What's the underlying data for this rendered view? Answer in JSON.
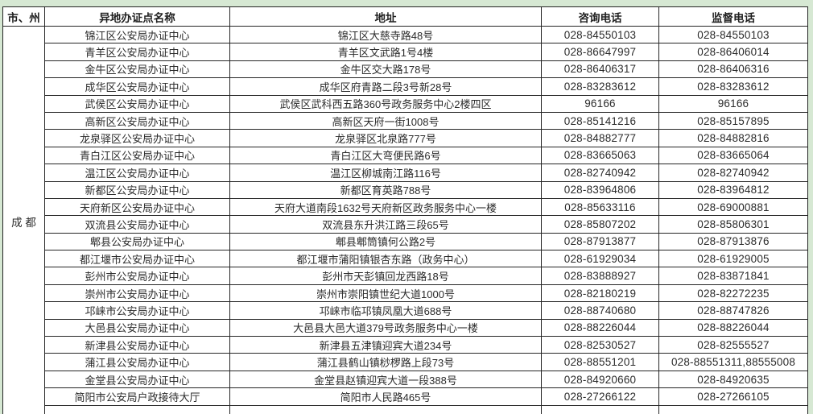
{
  "colors": {
    "page_bg": "#d6e8d3",
    "table_bg": "#ffffff",
    "border": "#262626",
    "text": "#2b2b2b"
  },
  "table": {
    "columns": [
      "市、州",
      "异地办证点名称",
      "地址",
      "咨询电话",
      "监督电话"
    ],
    "region_label": "成 都",
    "rows": [
      {
        "name": "锦江区公安局办证中心",
        "address": "锦江区大慈寺路48号",
        "consult_phone": "028-84550103",
        "supervise_phone": "028-84550103"
      },
      {
        "name": "青羊区公安局办证中心",
        "address": "青羊区文武路1号4楼",
        "consult_phone": "028-86647997",
        "supervise_phone": "028-86406014"
      },
      {
        "name": "金牛区公安局办证中心",
        "address": "金牛区交大路178号",
        "consult_phone": "028-86406317",
        "supervise_phone": "028-86406316"
      },
      {
        "name": "成华区公安局办证中心",
        "address": "成华区府青路二段3号新28号",
        "consult_phone": "028-83283612",
        "supervise_phone": "028-83283612"
      },
      {
        "name": "武侯区公安局办证中心",
        "address": "武侯区武科西五路360号政务服务中心2楼四区",
        "consult_phone": "96166",
        "supervise_phone": "96166"
      },
      {
        "name": "高新区公安局办证中心",
        "address": "高新区天府一街1008号",
        "consult_phone": "028-85141216",
        "supervise_phone": "028-85157895"
      },
      {
        "name": "龙泉驿区公安局办证中心",
        "address": "龙泉驿区北泉路777号",
        "consult_phone": "028-84882777",
        "supervise_phone": "028-84882816"
      },
      {
        "name": "青白江区公安局办证中心",
        "address": "青白江区大弯便民路6号",
        "consult_phone": "028-83665063",
        "supervise_phone": "028-83665064"
      },
      {
        "name": "温江区公安局办证中心",
        "address": "温江区柳城南江路116号",
        "consult_phone": "028-82740942",
        "supervise_phone": "028-82740942"
      },
      {
        "name": "新都区公安局办证中心",
        "address": "新都区育英路788号",
        "consult_phone": "028-83964806",
        "supervise_phone": "028-83964812"
      },
      {
        "name": "天府新区公安局办证中心",
        "address": "天府大道南段1632号天府新区政务服务中心一楼",
        "consult_phone": "028-85633116",
        "supervise_phone": "028-69000881"
      },
      {
        "name": "双流县公安局办证中心",
        "address": "双流县东升洪江路三段65号",
        "consult_phone": "028-85807202",
        "supervise_phone": "028-85806301"
      },
      {
        "name": "郫县公安局办证中心",
        "address": "郫县郫筒镇何公路2号",
        "consult_phone": "028-87913877",
        "supervise_phone": "028-87913876"
      },
      {
        "name": "都江堰市公安局办证中心",
        "address": "都江堰市蒲阳镇银杏东路（政务中心）",
        "consult_phone": "028-61929034",
        "supervise_phone": "028-61929005"
      },
      {
        "name": "彭州市公安局办证中心",
        "address": "彭州市天彭镇回龙西路18号",
        "consult_phone": "028-83888927",
        "supervise_phone": "028-83871841"
      },
      {
        "name": "崇州市公安局办证中心",
        "address": "崇州市崇阳镇世纪大道1000号",
        "consult_phone": "028-82180219",
        "supervise_phone": "028-82272235"
      },
      {
        "name": "邛崃市公安局办证中心",
        "address": "邛崃市临邛镇凤凰大道688号",
        "consult_phone": "028-88740680",
        "supervise_phone": "028-88747826"
      },
      {
        "name": "大邑县公安局办证中心",
        "address": "大邑县大邑大道379号政务服务中心一楼",
        "consult_phone": "028-88226044",
        "supervise_phone": "028-88226044"
      },
      {
        "name": "新津县公安局办证中心",
        "address": "新津县五津镇迎宾大道234号",
        "consult_phone": "028-82530527",
        "supervise_phone": "028-82555527"
      },
      {
        "name": "蒲江县公安局办证中心",
        "address": "蒲江县鹤山镇桫椤路上段73号",
        "consult_phone": "028-88551201",
        "supervise_phone": "028-88551311,88555008"
      },
      {
        "name": "金堂县公安局办证中心",
        "address": "金堂县赵镇迎宾大道一段388号",
        "consult_phone": "028-84920660",
        "supervise_phone": "028-84920635"
      },
      {
        "name": "简阳市公安局户政接待大厅",
        "address": "简阳市人民路465号",
        "consult_phone": "028-27266122",
        "supervise_phone": "028-27266105"
      }
    ]
  }
}
